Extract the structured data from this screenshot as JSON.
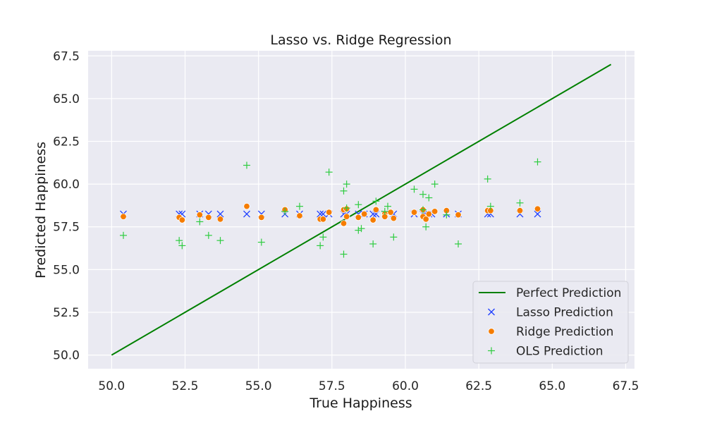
{
  "chart_data": {
    "type": "scatter",
    "title": "Lasso vs. Ridge Regression",
    "xlabel": "True Happiness",
    "ylabel": "Predicted Happiness",
    "xlim": [
      49.2,
      67.8
    ],
    "ylim": [
      49.2,
      67.8
    ],
    "xticks": [
      "50.0",
      "52.5",
      "55.0",
      "57.5",
      "60.0",
      "62.5",
      "65.0",
      "67.5"
    ],
    "yticks": [
      "50.0",
      "52.5",
      "55.0",
      "57.5",
      "60.0",
      "62.5",
      "65.0",
      "67.5"
    ],
    "grid": true,
    "legend_position": "lower-right",
    "colors": {
      "plot_background": "#eaeaf2",
      "grid": "#ffffff",
      "perfect": "#008000",
      "lasso": "#1f3fff",
      "ridge": "#f57c00",
      "ols": "#2ecc40"
    },
    "perfect_line": {
      "name": "Perfect Prediction",
      "x": [
        50.0,
        67.0
      ],
      "y": [
        50.0,
        67.0
      ]
    },
    "series": [
      {
        "name": "Lasso Prediction",
        "marker": "x",
        "points": [
          [
            50.4,
            58.25
          ],
          [
            52.3,
            58.25
          ],
          [
            52.4,
            58.25
          ],
          [
            53.0,
            58.25
          ],
          [
            53.3,
            58.25
          ],
          [
            53.7,
            58.25
          ],
          [
            54.6,
            58.25
          ],
          [
            55.1,
            58.25
          ],
          [
            55.9,
            58.25
          ],
          [
            56.4,
            58.25
          ],
          [
            57.1,
            58.25
          ],
          [
            57.2,
            58.25
          ],
          [
            57.4,
            58.25
          ],
          [
            57.9,
            58.25
          ],
          [
            58.0,
            58.25
          ],
          [
            58.4,
            58.25
          ],
          [
            58.6,
            58.25
          ],
          [
            58.9,
            58.25
          ],
          [
            59.0,
            58.25
          ],
          [
            59.3,
            58.25
          ],
          [
            59.6,
            58.25
          ],
          [
            60.3,
            58.25
          ],
          [
            60.6,
            58.25
          ],
          [
            60.7,
            58.25
          ],
          [
            60.8,
            58.25
          ],
          [
            60.9,
            58.25
          ],
          [
            61.4,
            58.25
          ],
          [
            61.8,
            58.25
          ],
          [
            62.8,
            58.25
          ],
          [
            62.9,
            58.25
          ],
          [
            63.9,
            58.25
          ],
          [
            64.5,
            58.25
          ]
        ]
      },
      {
        "name": "Ridge Prediction",
        "marker": "circle",
        "points": [
          [
            50.4,
            58.1
          ],
          [
            52.3,
            58.05
          ],
          [
            52.4,
            57.9
          ],
          [
            53.0,
            58.2
          ],
          [
            53.3,
            58.05
          ],
          [
            53.7,
            57.95
          ],
          [
            54.6,
            58.7
          ],
          [
            55.1,
            58.05
          ],
          [
            55.9,
            58.5
          ],
          [
            56.4,
            58.15
          ],
          [
            57.1,
            57.95
          ],
          [
            57.2,
            57.95
          ],
          [
            57.4,
            58.35
          ],
          [
            57.9,
            58.5
          ],
          [
            57.9,
            57.7
          ],
          [
            58.0,
            58.55
          ],
          [
            58.0,
            58.1
          ],
          [
            58.4,
            58.05
          ],
          [
            58.6,
            58.25
          ],
          [
            58.9,
            57.9
          ],
          [
            59.0,
            58.5
          ],
          [
            59.3,
            58.25
          ],
          [
            59.3,
            58.1
          ],
          [
            59.5,
            58.35
          ],
          [
            59.6,
            58.0
          ],
          [
            60.3,
            58.35
          ],
          [
            60.6,
            58.5
          ],
          [
            60.6,
            58.1
          ],
          [
            60.7,
            57.95
          ],
          [
            60.8,
            58.25
          ],
          [
            61.0,
            58.4
          ],
          [
            61.4,
            58.45
          ],
          [
            61.8,
            58.2
          ],
          [
            62.8,
            58.45
          ],
          [
            62.9,
            58.45
          ],
          [
            63.9,
            58.45
          ],
          [
            64.5,
            58.55
          ]
        ]
      },
      {
        "name": "OLS Prediction",
        "marker": "plus",
        "points": [
          [
            50.4,
            57.0
          ],
          [
            52.3,
            56.7
          ],
          [
            52.4,
            56.4
          ],
          [
            53.0,
            57.8
          ],
          [
            53.3,
            57.0
          ],
          [
            53.7,
            56.7
          ],
          [
            54.6,
            61.1
          ],
          [
            55.1,
            56.6
          ],
          [
            55.9,
            58.4
          ],
          [
            56.4,
            58.7
          ],
          [
            57.1,
            56.4
          ],
          [
            57.2,
            56.9
          ],
          [
            57.4,
            60.7
          ],
          [
            57.9,
            59.6
          ],
          [
            57.9,
            55.9
          ],
          [
            58.0,
            60.0
          ],
          [
            58.0,
            58.6
          ],
          [
            58.4,
            57.3
          ],
          [
            58.4,
            58.8
          ],
          [
            58.5,
            57.4
          ],
          [
            58.9,
            56.5
          ],
          [
            59.0,
            59.0
          ],
          [
            59.3,
            58.4
          ],
          [
            59.4,
            58.7
          ],
          [
            59.6,
            56.9
          ],
          [
            60.3,
            59.7
          ],
          [
            60.6,
            59.4
          ],
          [
            60.6,
            58.5
          ],
          [
            60.8,
            59.2
          ],
          [
            60.7,
            57.5
          ],
          [
            61.0,
            60.0
          ],
          [
            61.4,
            58.2
          ],
          [
            61.8,
            56.5
          ],
          [
            62.8,
            60.3
          ],
          [
            62.9,
            58.7
          ],
          [
            63.9,
            58.9
          ],
          [
            64.5,
            61.3
          ]
        ]
      }
    ]
  }
}
